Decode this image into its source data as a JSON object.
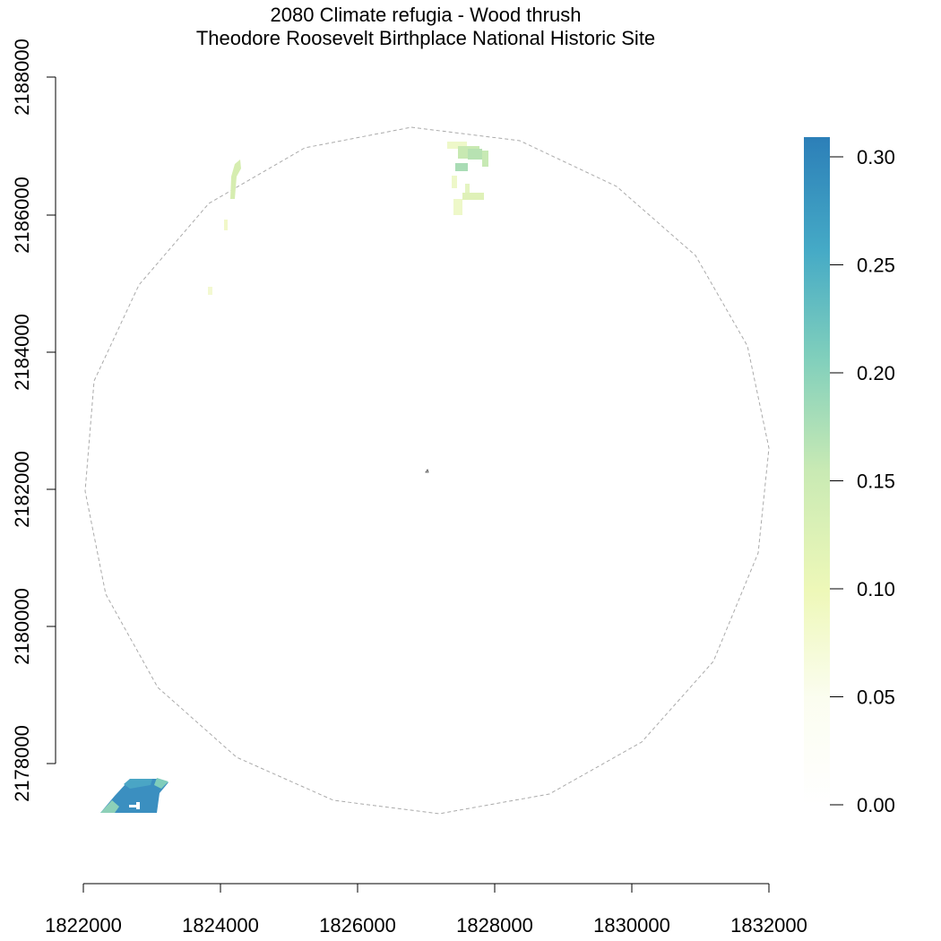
{
  "title": "2080 Climate refugia - Wood thrush",
  "subtitle": "Theodore Roosevelt Birthplace National Historic Site",
  "axes": {
    "x_ticks": [
      "1822000",
      "1824000",
      "1826000",
      "1828000",
      "1830000",
      "1832000"
    ],
    "y_ticks": [
      "2178000",
      "2180000",
      "2182000",
      "2184000",
      "2186000",
      "2188000"
    ]
  },
  "legend": {
    "ticks": [
      "0.00",
      "0.05",
      "0.10",
      "0.15",
      "0.20",
      "0.25",
      "0.30"
    ],
    "colors": [
      "#ffffff",
      "#f7fbea",
      "#edf8b1",
      "#c7e9b4",
      "#7fcdbb",
      "#41b6c4",
      "#2c7fb8"
    ]
  },
  "map_features": {
    "buffer_circle": "dashed-circle",
    "refugia_patches": [
      {
        "name": "southwest-patch",
        "value": 0.28
      },
      {
        "name": "north-patch",
        "value": 0.15
      },
      {
        "name": "northwest-strip",
        "value": 0.12
      }
    ]
  }
}
